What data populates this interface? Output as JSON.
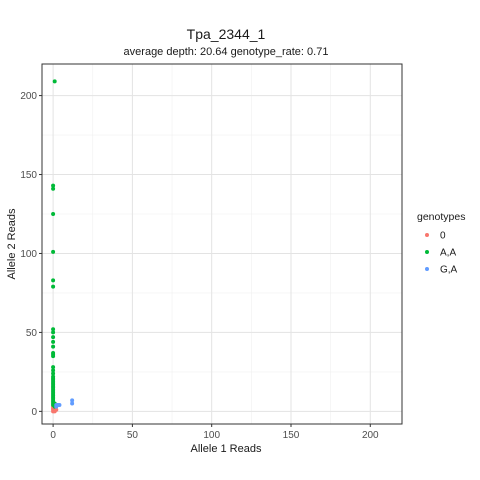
{
  "chart_data": {
    "type": "scatter",
    "title": "Tpa_2344_1",
    "subtitle": "average depth:  20.64  genotype_rate:  0.71",
    "xlabel": "Allele 1 Reads",
    "ylabel": "Allele 2 Reads",
    "xlim": [
      -7,
      220
    ],
    "ylim": [
      -8,
      220
    ],
    "xticks": [
      0,
      50,
      100,
      150,
      200
    ],
    "yticks": [
      0,
      50,
      100,
      150,
      200
    ],
    "grid": true,
    "legend": {
      "title": "genotypes",
      "position": "right"
    },
    "series": [
      {
        "name": "0",
        "color": "#F8766D",
        "points": [
          [
            0,
            0
          ],
          [
            0,
            1
          ],
          [
            0,
            2
          ],
          [
            1,
            1
          ],
          [
            1,
            0
          ],
          [
            0,
            3
          ],
          [
            2,
            1
          ]
        ]
      },
      {
        "name": "A,A",
        "color": "#00BA38",
        "points": [
          [
            1,
            209
          ],
          [
            0,
            143
          ],
          [
            0,
            141
          ],
          [
            0,
            125
          ],
          [
            0,
            101
          ],
          [
            0,
            83
          ],
          [
            0,
            79
          ],
          [
            0,
            52
          ],
          [
            0,
            50
          ],
          [
            0,
            47
          ],
          [
            0,
            44
          ],
          [
            0,
            41
          ],
          [
            0,
            37
          ],
          [
            0,
            36
          ],
          [
            0,
            35
          ],
          [
            0,
            28
          ],
          [
            0,
            26
          ],
          [
            0,
            24
          ],
          [
            0,
            22
          ],
          [
            0,
            21
          ],
          [
            0,
            20
          ],
          [
            0,
            19
          ],
          [
            0,
            18
          ],
          [
            0,
            17
          ],
          [
            0,
            16
          ],
          [
            0,
            15
          ],
          [
            0,
            14
          ],
          [
            0,
            13
          ],
          [
            0,
            12
          ],
          [
            0,
            11
          ],
          [
            0,
            10
          ],
          [
            0,
            9
          ],
          [
            0,
            8
          ],
          [
            0,
            7
          ],
          [
            0,
            6
          ],
          [
            0,
            5
          ],
          [
            0,
            4
          ],
          [
            1,
            4
          ],
          [
            1,
            3
          ],
          [
            1,
            5
          ]
        ]
      },
      {
        "name": "G,A",
        "color": "#619CFF",
        "points": [
          [
            12,
            7
          ],
          [
            12,
            5
          ],
          [
            3,
            4
          ],
          [
            2,
            4
          ],
          [
            4,
            4
          ],
          [
            2,
            3
          ]
        ]
      }
    ]
  }
}
